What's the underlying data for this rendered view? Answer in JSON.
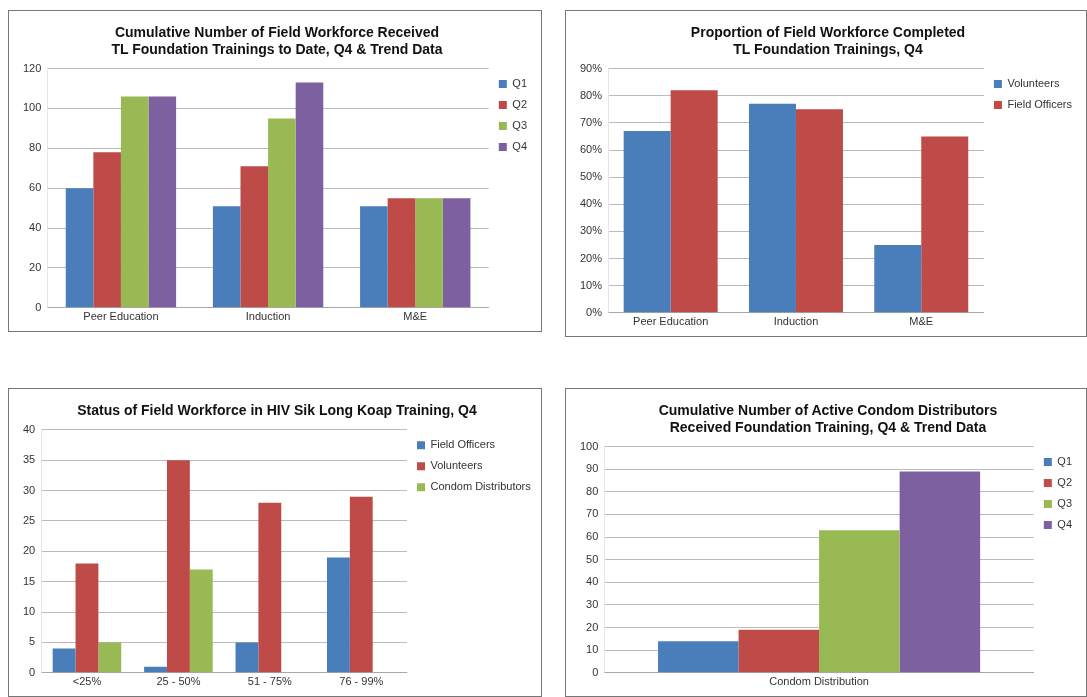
{
  "chart_data": [
    {
      "type": "bar",
      "title": "Cumulative Number of Field Workforce Received\nTL Foundation Trainings to Date, Q4 & Trend Data",
      "categories": [
        "Peer Education",
        "Induction",
        "M&E"
      ],
      "series": [
        {
          "name": "Q1",
          "color": "#4a7ebb",
          "values": [
            60,
            51,
            51
          ]
        },
        {
          "name": "Q2",
          "color": "#be4b48",
          "values": [
            78,
            71,
            55
          ]
        },
        {
          "name": "Q3",
          "color": "#98b954",
          "values": [
            106,
            95,
            55
          ]
        },
        {
          "name": "Q4",
          "color": "#7d60a0",
          "values": [
            106,
            113,
            55
          ]
        }
      ],
      "ylim": [
        0,
        120
      ],
      "yticks": [
        0,
        20,
        40,
        60,
        80,
        100,
        120
      ],
      "grid": "y",
      "legend": "right"
    },
    {
      "type": "bar",
      "title": "Proportion of Field Workforce Completed\nTL Foundation Trainings, Q4",
      "categories": [
        "Peer Education",
        "Induction",
        "M&E"
      ],
      "series": [
        {
          "name": "Volunteers",
          "color": "#4a7ebb",
          "values": [
            67,
            77,
            25
          ]
        },
        {
          "name": "Field Officers",
          "color": "#be4b48",
          "values": [
            82,
            75,
            65
          ]
        }
      ],
      "ylim": [
        0,
        90
      ],
      "yticks": [
        {
          "value": 0,
          "label": "0%"
        },
        {
          "value": 10,
          "label": "10%"
        },
        {
          "value": 20,
          "label": "20%"
        },
        {
          "value": 30,
          "label": "30%"
        },
        {
          "value": 40,
          "label": "40%"
        },
        {
          "value": 50,
          "label": "50%"
        },
        {
          "value": 60,
          "label": "60%"
        },
        {
          "value": 70,
          "label": "70%"
        },
        {
          "value": 80,
          "label": "80%"
        },
        {
          "value": 90,
          "label": "90%"
        }
      ],
      "grid": "y",
      "legend": "right"
    },
    {
      "type": "bar",
      "title": "Status of Field Workforce in HIV Sik Long Koap Training, Q4",
      "categories": [
        "<25%",
        "25 - 50%",
        "51 - 75%",
        "76 - 99%"
      ],
      "series": [
        {
          "name": "Field Officers",
          "color": "#4a7ebb",
          "values": [
            4,
            1,
            5,
            19
          ]
        },
        {
          "name": "Volunteers",
          "color": "#be4b48",
          "values": [
            18,
            35,
            28,
            29
          ]
        },
        {
          "name": "Condom Distributors",
          "color": "#98b954",
          "values": [
            5,
            17,
            0,
            0
          ]
        }
      ],
      "ylim": [
        0,
        40
      ],
      "yticks": [
        0,
        5,
        10,
        15,
        20,
        25,
        30,
        35,
        40
      ],
      "grid": "y",
      "legend": "right"
    },
    {
      "type": "bar",
      "title": "Cumulative Number of Active Condom Distributors\nReceived Foundation Training, Q4 & Trend Data",
      "categories": [
        "Condom Distribution"
      ],
      "series": [
        {
          "name": "Q1",
          "color": "#4a7ebb",
          "values": [
            14
          ]
        },
        {
          "name": "Q2",
          "color": "#be4b48",
          "values": [
            19
          ]
        },
        {
          "name": "Q3",
          "color": "#98b954",
          "values": [
            63
          ]
        },
        {
          "name": "Q4",
          "color": "#7d60a0",
          "values": [
            89
          ]
        }
      ],
      "ylim": [
        0,
        100
      ],
      "yticks": [
        0,
        10,
        20,
        30,
        40,
        50,
        60,
        70,
        80,
        90,
        100
      ],
      "grid": "y",
      "legend": "right"
    }
  ]
}
